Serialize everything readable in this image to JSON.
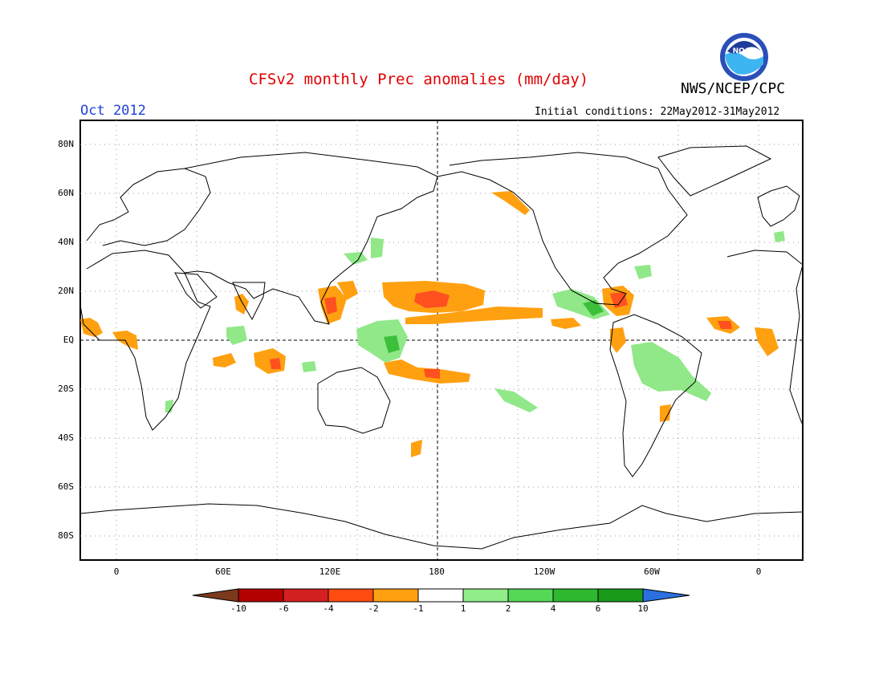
{
  "header": {
    "title": "CFSv2 monthly Prec anomalies (mm/day)",
    "month": "Oct 2012",
    "agency": "NWS/NCEP/CPC",
    "initial_conditions": "Initial conditions: 22May2012-31May2012",
    "logo_text": "NOAA"
  },
  "axes": {
    "lat_labels": [
      "80N",
      "60N",
      "40N",
      "20N",
      "EQ",
      "20S",
      "40S",
      "60S",
      "80S"
    ],
    "lon_labels": [
      "0",
      "60E",
      "120E",
      "180",
      "120W",
      "60W",
      "0"
    ]
  },
  "colorbar": {
    "labels": [
      "-10",
      "-6",
      "-4",
      "-2",
      "-1",
      "1",
      "2",
      "4",
      "6",
      "10"
    ],
    "colors": [
      "#7b3a1c",
      "#b30000",
      "#d42020",
      "#ff4a10",
      "#ffa010",
      "#ffffff",
      "#90ee88",
      "#55d855",
      "#2fb82f",
      "#189a18",
      "#2b6fe0"
    ]
  },
  "colors": {
    "title": "#e00000",
    "month": "#1f3fd8",
    "dry_strong": "#ff5020",
    "dry": "#ffa010",
    "wet": "#90e888",
    "wet_strong": "#3cc03c"
  }
}
